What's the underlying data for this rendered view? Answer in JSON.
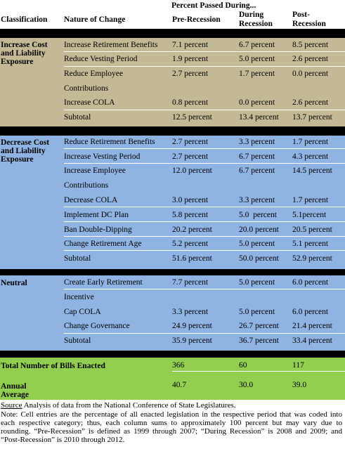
{
  "header": {
    "percent_passed": "Percent Passed During...",
    "classification": "Classification",
    "nature": "Nature of Change",
    "pre": "Pre-Recession",
    "during_1": "During",
    "during_2": "Recession",
    "post_1": "Post-",
    "post_2": "Recession"
  },
  "colors": {
    "increase_band": "#c4b995",
    "decrease_band": "#8fb3e2",
    "total_band": "#92cf50",
    "separator": "#000000"
  },
  "increase": {
    "label_1": "Increase Cost",
    "label_2": "and Liability",
    "label_3": "Exposure",
    "rows": [
      {
        "nature": "Increase Retirement Benefits",
        "pre": "7.1 percent",
        "during": "6.7 percent",
        "post": "8.5 percent"
      },
      {
        "nature": "Reduce Vesting Period",
        "pre": "1.9 percent",
        "during": "5.0 percent",
        "post": "2.6 percent"
      },
      {
        "nature": "Reduce Employee",
        "pre": "2.7 percent",
        "during": "1.7 percent",
        "post": "0.0 percent"
      },
      {
        "nature": "Contributions",
        "pre": "",
        "during": "",
        "post": ""
      },
      {
        "nature": "Increase COLA",
        "pre": "0.8 percent",
        "during": "0.0 percent",
        "post": "2.6 percent"
      },
      {
        "nature": "Subtotal",
        "pre": "12.5 percent",
        "during": "13.4 percent",
        "post": "13.7 percent"
      }
    ]
  },
  "decrease": {
    "label_1": "Decrease Cost",
    "label_2": "and Liability",
    "label_3": "Exposure",
    "rows": [
      {
        "nature": "Reduce Retirement Benefits",
        "pre": "2.7 percent",
        "during": "3.3 percent",
        "post": "1.7 percent"
      },
      {
        "nature": "Increase Vesting Period",
        "pre": "2.7 percent",
        "during": "6.7 percent",
        "post": "4.3 percent"
      },
      {
        "nature": "Increase Employee",
        "pre": "12.0 percent",
        "during": "6.7 percent",
        "post": "14.5 percent"
      },
      {
        "nature": "Contributions",
        "pre": "",
        "during": "",
        "post": ""
      },
      {
        "nature": "Decrease COLA",
        "pre": "3.0 percent",
        "during": "3.3 percent",
        "post": "1.7 percent"
      },
      {
        "nature": "Implement DC Plan",
        "pre": "5.8 percent",
        "during": "5.0  percent",
        "post": "5.1percent"
      },
      {
        "nature": "Ban Double-Dipping",
        "pre": "20.2 percent",
        "during": "20.0 percent",
        "post": "20.5 percent"
      },
      {
        "nature": "Change Retirement Age",
        "pre": "5.2 percent",
        "during": "5.0 percent",
        "post": "5.1 percent"
      },
      {
        "nature": "Subtotal",
        "pre": "51.6 percent",
        "during": "50.0 percent",
        "post": "52.9 percent"
      }
    ]
  },
  "neutral": {
    "label": "Neutral",
    "rows": [
      {
        "nature": "Create Early Retirement",
        "pre": "7.7 percent",
        "during": "5.0 percent",
        "post": "6.0 percent"
      },
      {
        "nature": "Incentive",
        "pre": "",
        "during": "",
        "post": ""
      },
      {
        "nature": "Cap COLA",
        "pre": "3.3 percent",
        "during": "5.0 percent",
        "post": "6.0 percent"
      },
      {
        "nature": "Change Governance",
        "pre": "24.9 percent",
        "during": "26.7 percent",
        "post": "21.4 percent"
      },
      {
        "nature": "Subtotal",
        "pre": "35.9 percent",
        "during": "36.7 percent",
        "post": "33.4 percent"
      }
    ]
  },
  "totals": {
    "bills_label": "Total Number of Bills Enacted",
    "bills_pre": "366",
    "bills_during": "60",
    "bills_post": "117",
    "avg_label_1": "Annual",
    "avg_label_2": "Average",
    "avg_pre": "40.7",
    "avg_during": "30.0",
    "avg_post": "39.0"
  },
  "footer": {
    "source_word": "Source",
    "source_text": " Analysis of data from the National Conference of State Legislatures.",
    "note": "Note: Cell entries are the percentage of all enacted legislation in the respective period that was coded into each respective category; thus, each column sums to approximately 100 percent but may vary due to rounding. “Pre-Recession” is defined as 1999 through 2007; “During Recession” is 2008 and 2009; and “Post-Recession” is 2010 through 2012."
  }
}
